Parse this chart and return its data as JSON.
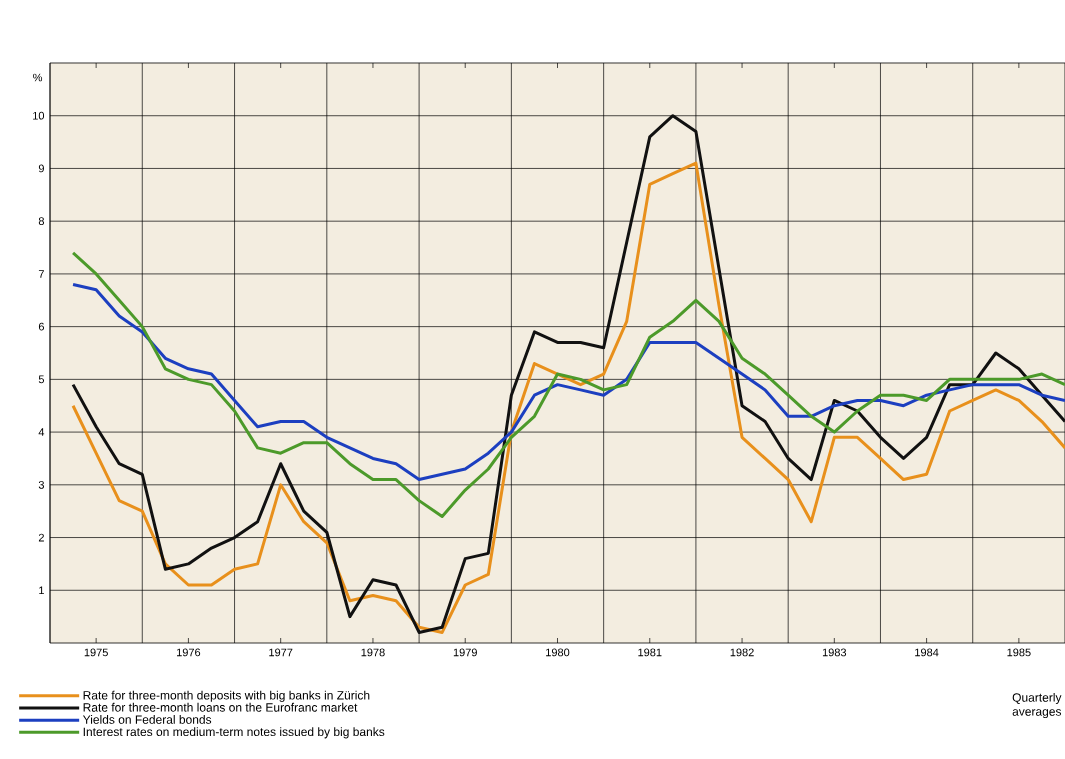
{
  "chart_data": {
    "type": "line",
    "ylabel": "%",
    "x": [
      1975.25,
      1975.5,
      1975.75,
      1976,
      1976.25,
      1976.5,
      1976.75,
      1977,
      1977.25,
      1977.5,
      1977.75,
      1978,
      1978.25,
      1978.5,
      1978.75,
      1979,
      1979.25,
      1979.5,
      1979.75,
      1980,
      1980.25,
      1980.5,
      1980.75,
      1981,
      1981.25,
      1981.5,
      1981.75,
      1982,
      1982.25,
      1982.5,
      1982.75,
      1983,
      1983.25,
      1983.5,
      1983.75,
      1984,
      1984.25,
      1984.5,
      1984.75,
      1985,
      1985.25,
      1985.5,
      1985.75,
      1986
    ],
    "series": [
      {
        "name": "Rate for three-month deposits with big banks in Zürich",
        "color": "#e8901c",
        "values": [
          4.5,
          3.6,
          2.7,
          2.5,
          1.5,
          1.1,
          1.1,
          1.4,
          1.5,
          3.0,
          2.3,
          1.9,
          0.8,
          0.9,
          0.8,
          0.3,
          0.2,
          1.1,
          1.3,
          4.0,
          5.3,
          5.1,
          4.9,
          5.1,
          6.1,
          8.7,
          8.9,
          9.1,
          6.4,
          3.9,
          3.5,
          3.1,
          2.3,
          3.9,
          3.9,
          3.5,
          3.1,
          3.2,
          4.4,
          4.6,
          4.8,
          4.6,
          4.2,
          3.7
        ]
      },
      {
        "name": "Rate for three-month loans on the Eurofranc market",
        "color": "#111111",
        "values": [
          4.9,
          4.1,
          3.4,
          3.2,
          1.4,
          1.5,
          1.8,
          2.0,
          2.3,
          3.4,
          2.5,
          2.1,
          0.5,
          1.2,
          1.1,
          0.2,
          0.3,
          1.6,
          1.7,
          4.7,
          5.9,
          5.7,
          5.7,
          5.6,
          7.6,
          9.6,
          10.0,
          9.7,
          7.1,
          4.5,
          4.2,
          3.5,
          3.1,
          4.6,
          4.4,
          3.9,
          3.5,
          3.9,
          4.9,
          4.9,
          5.5,
          5.2,
          4.7,
          4.2
        ]
      },
      {
        "name": "Yields on Federal bonds",
        "color": "#1c3fc0",
        "values": [
          6.8,
          6.7,
          6.2,
          5.9,
          5.4,
          5.2,
          5.1,
          4.6,
          4.1,
          4.2,
          4.2,
          3.9,
          3.7,
          3.5,
          3.4,
          3.1,
          3.2,
          3.3,
          3.6,
          4.0,
          4.7,
          4.9,
          4.8,
          4.7,
          5.0,
          5.7,
          5.7,
          5.7,
          5.4,
          5.1,
          4.8,
          4.3,
          4.3,
          4.5,
          4.6,
          4.6,
          4.5,
          4.7,
          4.8,
          4.9,
          4.9,
          4.9,
          4.7,
          4.6
        ]
      },
      {
        "name": "Interest rates on medium-term notes issued by big banks",
        "color": "#4c9a2a",
        "values": [
          7.4,
          7.0,
          6.5,
          6.0,
          5.2,
          5.0,
          4.9,
          4.4,
          3.7,
          3.6,
          3.8,
          3.8,
          3.4,
          3.1,
          3.1,
          2.7,
          2.4,
          2.9,
          3.3,
          3.9,
          4.3,
          5.1,
          5.0,
          4.8,
          4.9,
          5.8,
          6.1,
          6.5,
          6.1,
          5.4,
          5.1,
          4.7,
          4.3,
          4.0,
          4.4,
          4.7,
          4.7,
          4.6,
          5.0,
          5.0,
          5.0,
          5.0,
          5.1,
          4.9
        ]
      }
    ],
    "xlim": [
      1975,
      1986
    ],
    "xticks": [
      {
        "value": 1975,
        "label": null
      },
      {
        "value": 1975.5,
        "label": "1975"
      },
      {
        "value": 1976,
        "label": null
      },
      {
        "value": 1976.5,
        "label": "1976"
      },
      {
        "value": 1977,
        "label": null
      },
      {
        "value": 1977.5,
        "label": "1977"
      },
      {
        "value": 1978,
        "label": null
      },
      {
        "value": 1978.5,
        "label": "1978"
      },
      {
        "value": 1979,
        "label": null
      },
      {
        "value": 1979.5,
        "label": "1979"
      },
      {
        "value": 1980,
        "label": null
      },
      {
        "value": 1980.5,
        "label": "1980"
      },
      {
        "value": 1981,
        "label": null
      },
      {
        "value": 1981.5,
        "label": "1981"
      },
      {
        "value": 1982,
        "label": null
      },
      {
        "value": 1982.5,
        "label": "1982"
      },
      {
        "value": 1983,
        "label": null
      },
      {
        "value": 1983.5,
        "label": "1983"
      },
      {
        "value": 1984,
        "label": null
      },
      {
        "value": 1984.5,
        "label": "1984"
      },
      {
        "value": 1985,
        "label": null
      },
      {
        "value": 1985.5,
        "label": "1985"
      }
    ],
    "ylim": [
      0,
      11
    ],
    "yticks": [
      1,
      2,
      3,
      4,
      5,
      6,
      7,
      8,
      9,
      10
    ],
    "grid": true,
    "legend": "bottom",
    "marker": "none",
    "line_style": "solid",
    "annotations": [
      "Quarterly averages"
    ]
  }
}
